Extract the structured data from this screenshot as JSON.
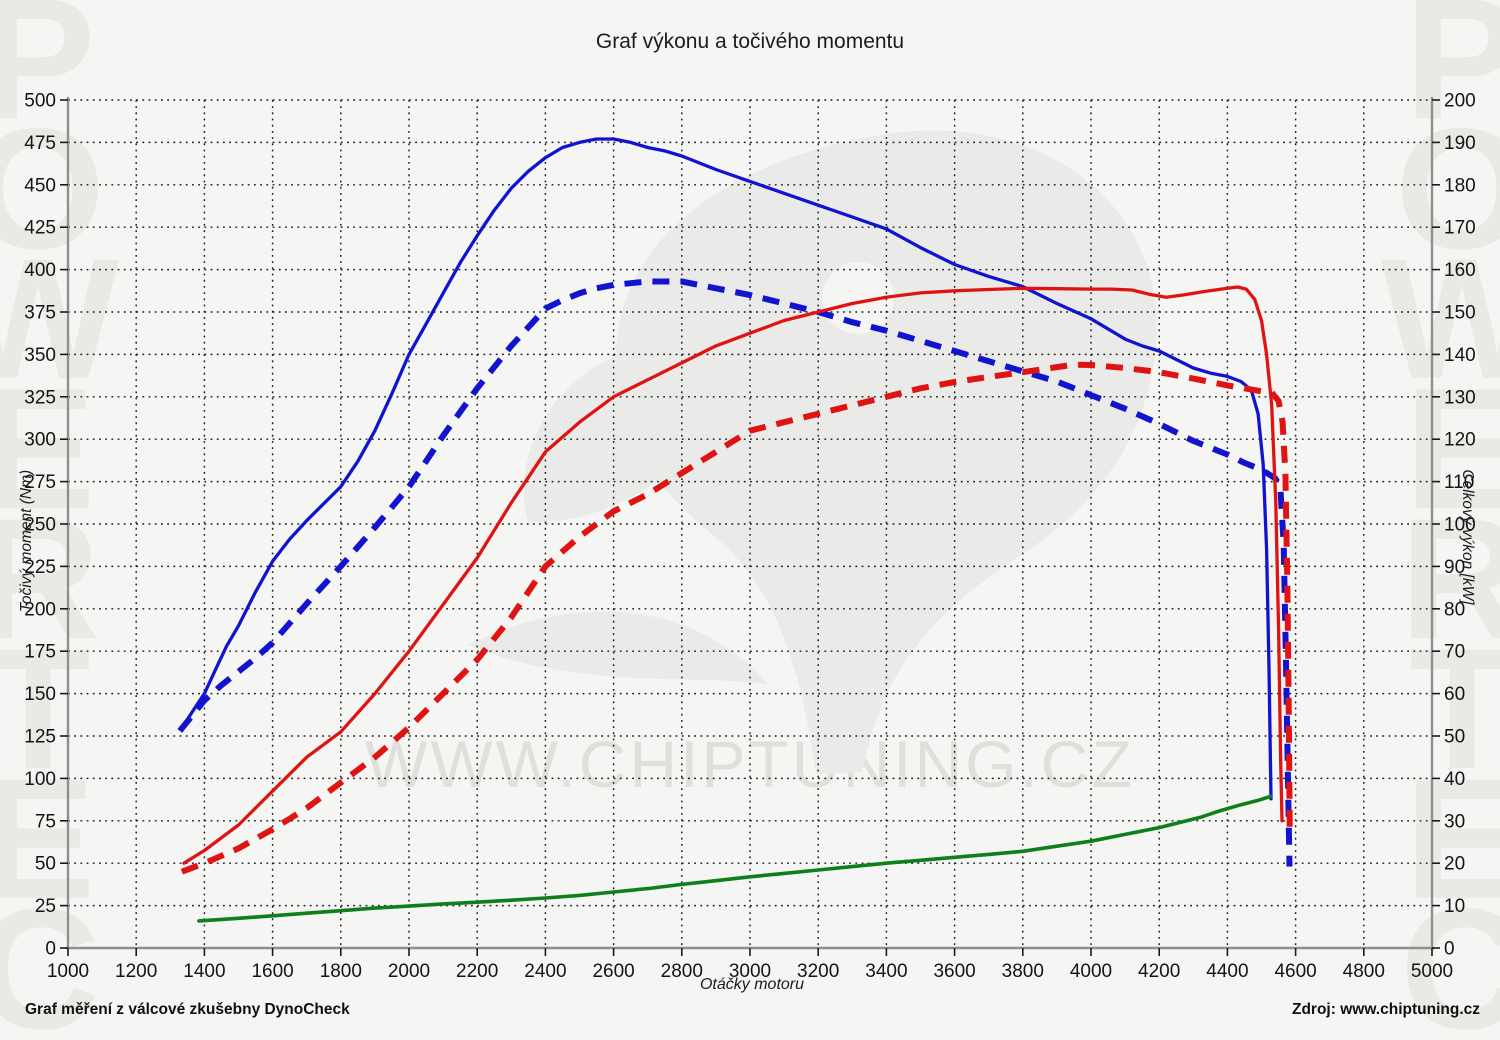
{
  "title": "Graf výkonu a točivého momentu",
  "watermarks": {
    "side": "POWERTEC",
    "center": "WWW.CHIPTUNING.CZ"
  },
  "footer": {
    "left": "Graf měření z válcové zkušebny DynoCheck",
    "right": "Zdroj: www.chiptuning.cz"
  },
  "axes": {
    "x": {
      "label": "Otáčky motoru",
      "min": 1000,
      "max": 5000,
      "step": 200
    },
    "y_left": {
      "label": "Točivý moment (Nm)",
      "min": 0,
      "max": 500,
      "step": 25
    },
    "y_right": {
      "label": "Celkový výkon [kW]",
      "min": 0,
      "max": 200,
      "step": 10
    }
  },
  "colors": {
    "blue": "#1213cf",
    "red": "#e01313",
    "green": "#0f7f1c",
    "grid": "#1a1a1a",
    "axis": "#8f8f8f",
    "tick_text": "#141414",
    "background": "#f5f5f3",
    "eagle": "#eaeae8"
  },
  "chart_data": {
    "type": "line",
    "x_unit": "rpm",
    "grid": "dotted",
    "legend": "none",
    "series": [
      {
        "id": "torque_nm_solid_blue",
        "axis": "y_left",
        "style": "solid",
        "color_key": "blue",
        "width": 3.3,
        "points": [
          [
            1345,
            133
          ],
          [
            1370,
            141
          ],
          [
            1400,
            150
          ],
          [
            1430,
            163
          ],
          [
            1465,
            178
          ],
          [
            1500,
            190
          ],
          [
            1550,
            210
          ],
          [
            1600,
            228
          ],
          [
            1650,
            241
          ],
          [
            1700,
            252
          ],
          [
            1750,
            262
          ],
          [
            1800,
            272
          ],
          [
            1850,
            287
          ],
          [
            1900,
            305
          ],
          [
            1950,
            327
          ],
          [
            2000,
            350
          ],
          [
            2050,
            368
          ],
          [
            2100,
            386
          ],
          [
            2150,
            404
          ],
          [
            2200,
            420
          ],
          [
            2250,
            435
          ],
          [
            2300,
            448
          ],
          [
            2350,
            458
          ],
          [
            2400,
            466
          ],
          [
            2450,
            472
          ],
          [
            2500,
            475
          ],
          [
            2550,
            477
          ],
          [
            2600,
            477
          ],
          [
            2650,
            475
          ],
          [
            2700,
            472
          ],
          [
            2750,
            470
          ],
          [
            2800,
            467
          ],
          [
            2900,
            459
          ],
          [
            3000,
            452
          ],
          [
            3100,
            445
          ],
          [
            3200,
            438
          ],
          [
            3300,
            431
          ],
          [
            3400,
            424
          ],
          [
            3500,
            413
          ],
          [
            3600,
            403
          ],
          [
            3700,
            396
          ],
          [
            3800,
            390
          ],
          [
            3900,
            380
          ],
          [
            4000,
            371
          ],
          [
            4100,
            359
          ],
          [
            4150,
            355
          ],
          [
            4200,
            352
          ],
          [
            4250,
            347
          ],
          [
            4300,
            342
          ],
          [
            4350,
            339
          ],
          [
            4400,
            337
          ],
          [
            4440,
            334
          ],
          [
            4470,
            329
          ],
          [
            4490,
            315
          ],
          [
            4505,
            285
          ],
          [
            4515,
            235
          ],
          [
            4522,
            165
          ],
          [
            4528,
            88
          ]
        ]
      },
      {
        "id": "torque_nm_dashed_blue",
        "axis": "y_left",
        "style": "dashed",
        "color_key": "blue",
        "width": 6,
        "points": [
          [
            1328,
            128
          ],
          [
            1360,
            136
          ],
          [
            1400,
            146
          ],
          [
            1450,
            155
          ],
          [
            1500,
            163
          ],
          [
            1550,
            171
          ],
          [
            1600,
            180
          ],
          [
            1700,
            203
          ],
          [
            1800,
            225
          ],
          [
            1900,
            248
          ],
          [
            2000,
            272
          ],
          [
            2100,
            302
          ],
          [
            2200,
            330
          ],
          [
            2300,
            355
          ],
          [
            2400,
            377
          ],
          [
            2450,
            382
          ],
          [
            2500,
            386
          ],
          [
            2550,
            389
          ],
          [
            2600,
            391
          ],
          [
            2700,
            393
          ],
          [
            2800,
            393
          ],
          [
            2900,
            389
          ],
          [
            3000,
            385
          ],
          [
            3100,
            380
          ],
          [
            3200,
            375
          ],
          [
            3300,
            369
          ],
          [
            3400,
            364
          ],
          [
            3500,
            358
          ],
          [
            3600,
            352
          ],
          [
            3700,
            346
          ],
          [
            3800,
            340
          ],
          [
            3900,
            334
          ],
          [
            4000,
            326
          ],
          [
            4100,
            318
          ],
          [
            4200,
            309
          ],
          [
            4300,
            299
          ],
          [
            4400,
            291
          ],
          [
            4450,
            286
          ],
          [
            4500,
            282
          ],
          [
            4540,
            277
          ],
          [
            4555,
            272
          ],
          [
            4565,
            238
          ],
          [
            4572,
            165
          ],
          [
            4578,
            95
          ],
          [
            4582,
            48
          ]
        ]
      },
      {
        "id": "power_kw_solid_red",
        "axis": "y_right",
        "style": "solid",
        "color_key": "red",
        "width": 3.3,
        "points": [
          [
            1340,
            20
          ],
          [
            1400,
            23
          ],
          [
            1500,
            29
          ],
          [
            1600,
            37
          ],
          [
            1700,
            45
          ],
          [
            1800,
            51
          ],
          [
            1900,
            60
          ],
          [
            2000,
            70
          ],
          [
            2100,
            81
          ],
          [
            2200,
            92
          ],
          [
            2300,
            105
          ],
          [
            2400,
            117
          ],
          [
            2500,
            124
          ],
          [
            2600,
            130
          ],
          [
            2700,
            134
          ],
          [
            2800,
            138
          ],
          [
            2900,
            142
          ],
          [
            3000,
            145
          ],
          [
            3100,
            148
          ],
          [
            3200,
            150
          ],
          [
            3300,
            152
          ],
          [
            3400,
            153.5
          ],
          [
            3500,
            154.5
          ],
          [
            3600,
            155
          ],
          [
            3700,
            155.3
          ],
          [
            3800,
            155.6
          ],
          [
            3900,
            155.5
          ],
          [
            4000,
            155.4
          ],
          [
            4060,
            155.4
          ],
          [
            4120,
            155.2
          ],
          [
            4170,
            154.2
          ],
          [
            4220,
            153.5
          ],
          [
            4270,
            154
          ],
          [
            4330,
            154.8
          ],
          [
            4400,
            155.6
          ],
          [
            4430,
            155.9
          ],
          [
            4455,
            155.4
          ],
          [
            4480,
            153
          ],
          [
            4500,
            148
          ],
          [
            4515,
            140
          ],
          [
            4530,
            128
          ],
          [
            4542,
            105
          ],
          [
            4550,
            75
          ],
          [
            4556,
            45
          ],
          [
            4560,
            30
          ]
        ]
      },
      {
        "id": "power_kw_dashed_red",
        "axis": "y_right",
        "style": "dashed",
        "color_key": "red",
        "width": 6,
        "points": [
          [
            1334,
            18
          ],
          [
            1400,
            20
          ],
          [
            1500,
            23.5
          ],
          [
            1600,
            28
          ],
          [
            1700,
            33
          ],
          [
            1800,
            39
          ],
          [
            1900,
            45
          ],
          [
            2000,
            52
          ],
          [
            2100,
            60
          ],
          [
            2200,
            68
          ],
          [
            2300,
            78
          ],
          [
            2400,
            90
          ],
          [
            2500,
            97
          ],
          [
            2600,
            103
          ],
          [
            2700,
            107
          ],
          [
            2800,
            112
          ],
          [
            2900,
            117
          ],
          [
            3000,
            122
          ],
          [
            3100,
            124
          ],
          [
            3200,
            126
          ],
          [
            3300,
            128
          ],
          [
            3400,
            130
          ],
          [
            3500,
            132
          ],
          [
            3600,
            133.5
          ],
          [
            3700,
            134.7
          ],
          [
            3800,
            135.8
          ],
          [
            3900,
            137
          ],
          [
            3950,
            137.6
          ],
          [
            4000,
            137.5
          ],
          [
            4100,
            136.8
          ],
          [
            4200,
            135.8
          ],
          [
            4300,
            134.3
          ],
          [
            4400,
            132.7
          ],
          [
            4450,
            132
          ],
          [
            4500,
            131.3
          ],
          [
            4530,
            131
          ],
          [
            4550,
            129
          ],
          [
            4562,
            124
          ],
          [
            4570,
            112
          ],
          [
            4576,
            85
          ],
          [
            4580,
            55
          ],
          [
            4583,
            26
          ]
        ]
      },
      {
        "id": "green_curve_nm",
        "axis": "y_left",
        "style": "solid",
        "color_key": "green",
        "width": 3.6,
        "points": [
          [
            1384,
            16
          ],
          [
            1500,
            17.5
          ],
          [
            1600,
            19
          ],
          [
            1700,
            20.5
          ],
          [
            1800,
            22
          ],
          [
            1900,
            23.5
          ],
          [
            2000,
            24.7
          ],
          [
            2100,
            26
          ],
          [
            2200,
            27
          ],
          [
            2300,
            28.2
          ],
          [
            2400,
            29.5
          ],
          [
            2500,
            31
          ],
          [
            2600,
            33
          ],
          [
            2700,
            35
          ],
          [
            2800,
            37.5
          ],
          [
            2900,
            39.7
          ],
          [
            3000,
            42
          ],
          [
            3100,
            44
          ],
          [
            3200,
            46
          ],
          [
            3300,
            48
          ],
          [
            3400,
            50
          ],
          [
            3500,
            51.7
          ],
          [
            3600,
            53.5
          ],
          [
            3700,
            55.2
          ],
          [
            3800,
            57
          ],
          [
            3900,
            60
          ],
          [
            4000,
            63
          ],
          [
            4100,
            67
          ],
          [
            4200,
            71
          ],
          [
            4260,
            74
          ],
          [
            4320,
            77
          ],
          [
            4380,
            81
          ],
          [
            4440,
            84.5
          ],
          [
            4490,
            87
          ],
          [
            4528,
            89.5
          ]
        ]
      }
    ]
  }
}
